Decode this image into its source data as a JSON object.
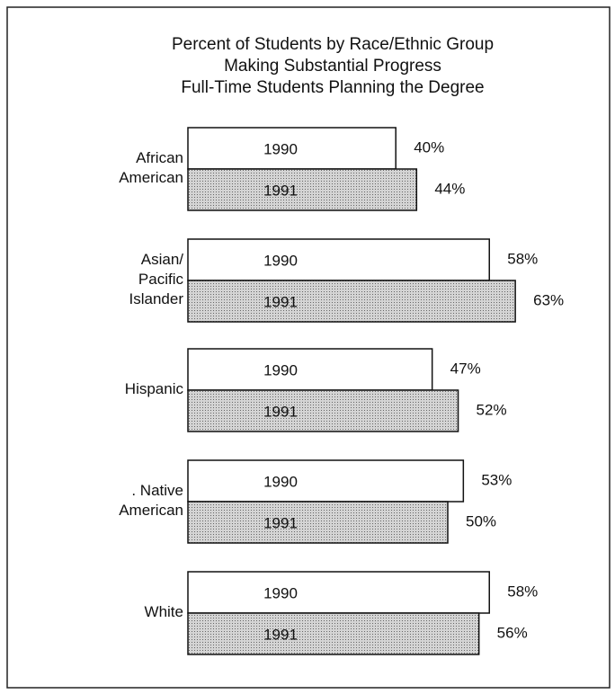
{
  "chart_data": {
    "type": "hbar",
    "title": [
      "Percent of Students by Race/Ethnic Group",
      "Making Substantial Progress",
      "Full-Time Students Planning the Degree"
    ],
    "categories": [
      [
        "African",
        "American"
      ],
      [
        "Asian/",
        "Pacific",
        "Islander"
      ],
      [
        "Hispanic"
      ],
      [
        ". Native",
        "American"
      ],
      [
        "White"
      ]
    ],
    "series": [
      {
        "name": "1990",
        "color": "#ffffff",
        "values": [
          40,
          58,
          47,
          53,
          58
        ],
        "value_labels": [
          "40%",
          "58%",
          "47%",
          "53%",
          "58%"
        ]
      },
      {
        "name": "1991",
        "color": "#c9c9c9",
        "values": [
          44,
          63,
          52,
          50,
          56
        ],
        "value_labels": [
          "44%",
          "63%",
          "52%",
          "50%",
          "56%"
        ]
      }
    ]
  }
}
